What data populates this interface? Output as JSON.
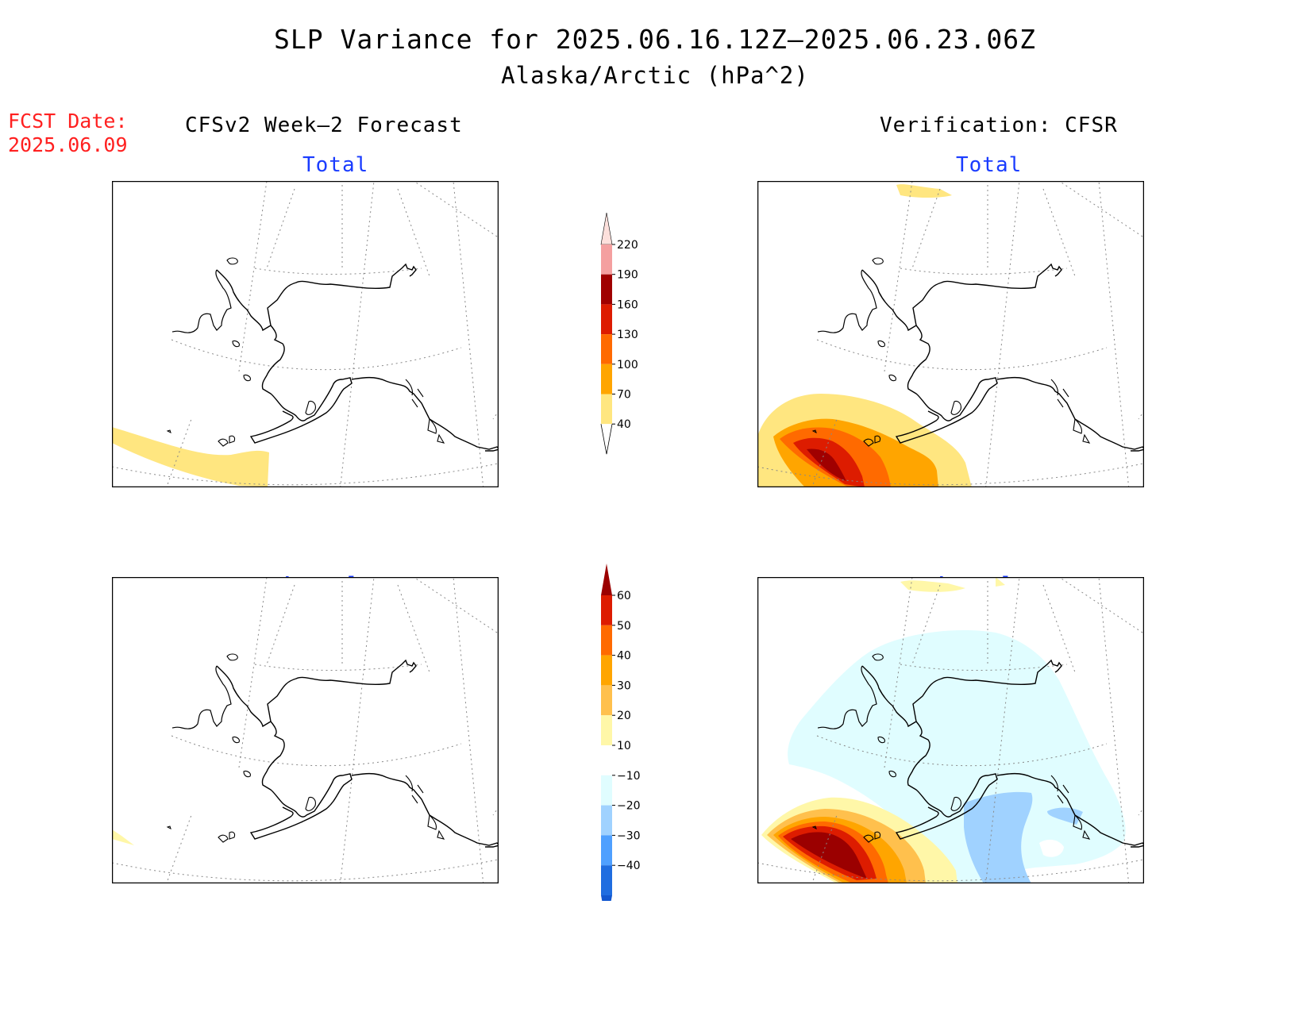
{
  "title": "SLP Variance for 2025.06.16.12Z–2025.06.23.06Z",
  "subtitle": "Alaska/Arctic (hPa^2)",
  "forecast_date": {
    "label": "FCST Date:",
    "value": "2025.06.09"
  },
  "columns": {
    "left": "CFSv2 Week–2 Forecast",
    "right": "Verification: CFSR"
  },
  "panels": {
    "top_left": "Total",
    "top_right": "Total",
    "bottom_left": "Anomaly",
    "bottom_right": "Anomaly"
  },
  "colorbars": {
    "total": {
      "labels": [
        "220",
        "190",
        "160",
        "130",
        "100",
        "70",
        "40"
      ],
      "colors": [
        "#fde0dc",
        "#f4a0a0",
        "#a00000",
        "#dd1c00",
        "#ff6a00",
        "#ffa500",
        "#ffe680"
      ]
    },
    "anomaly": {
      "labels": [
        "60",
        "50",
        "40",
        "30",
        "20",
        "10",
        "−10",
        "−20",
        "−30",
        "−40"
      ],
      "colors": [
        "#9b0000",
        "#dd1c00",
        "#ff6a00",
        "#ffa500",
        "#ffc04d",
        "#fff7a8",
        "#ffffff",
        "#e0fdff",
        "#a0d2ff",
        "#4fa0ff",
        "#1f6de0",
        "#1257d0"
      ]
    }
  }
}
